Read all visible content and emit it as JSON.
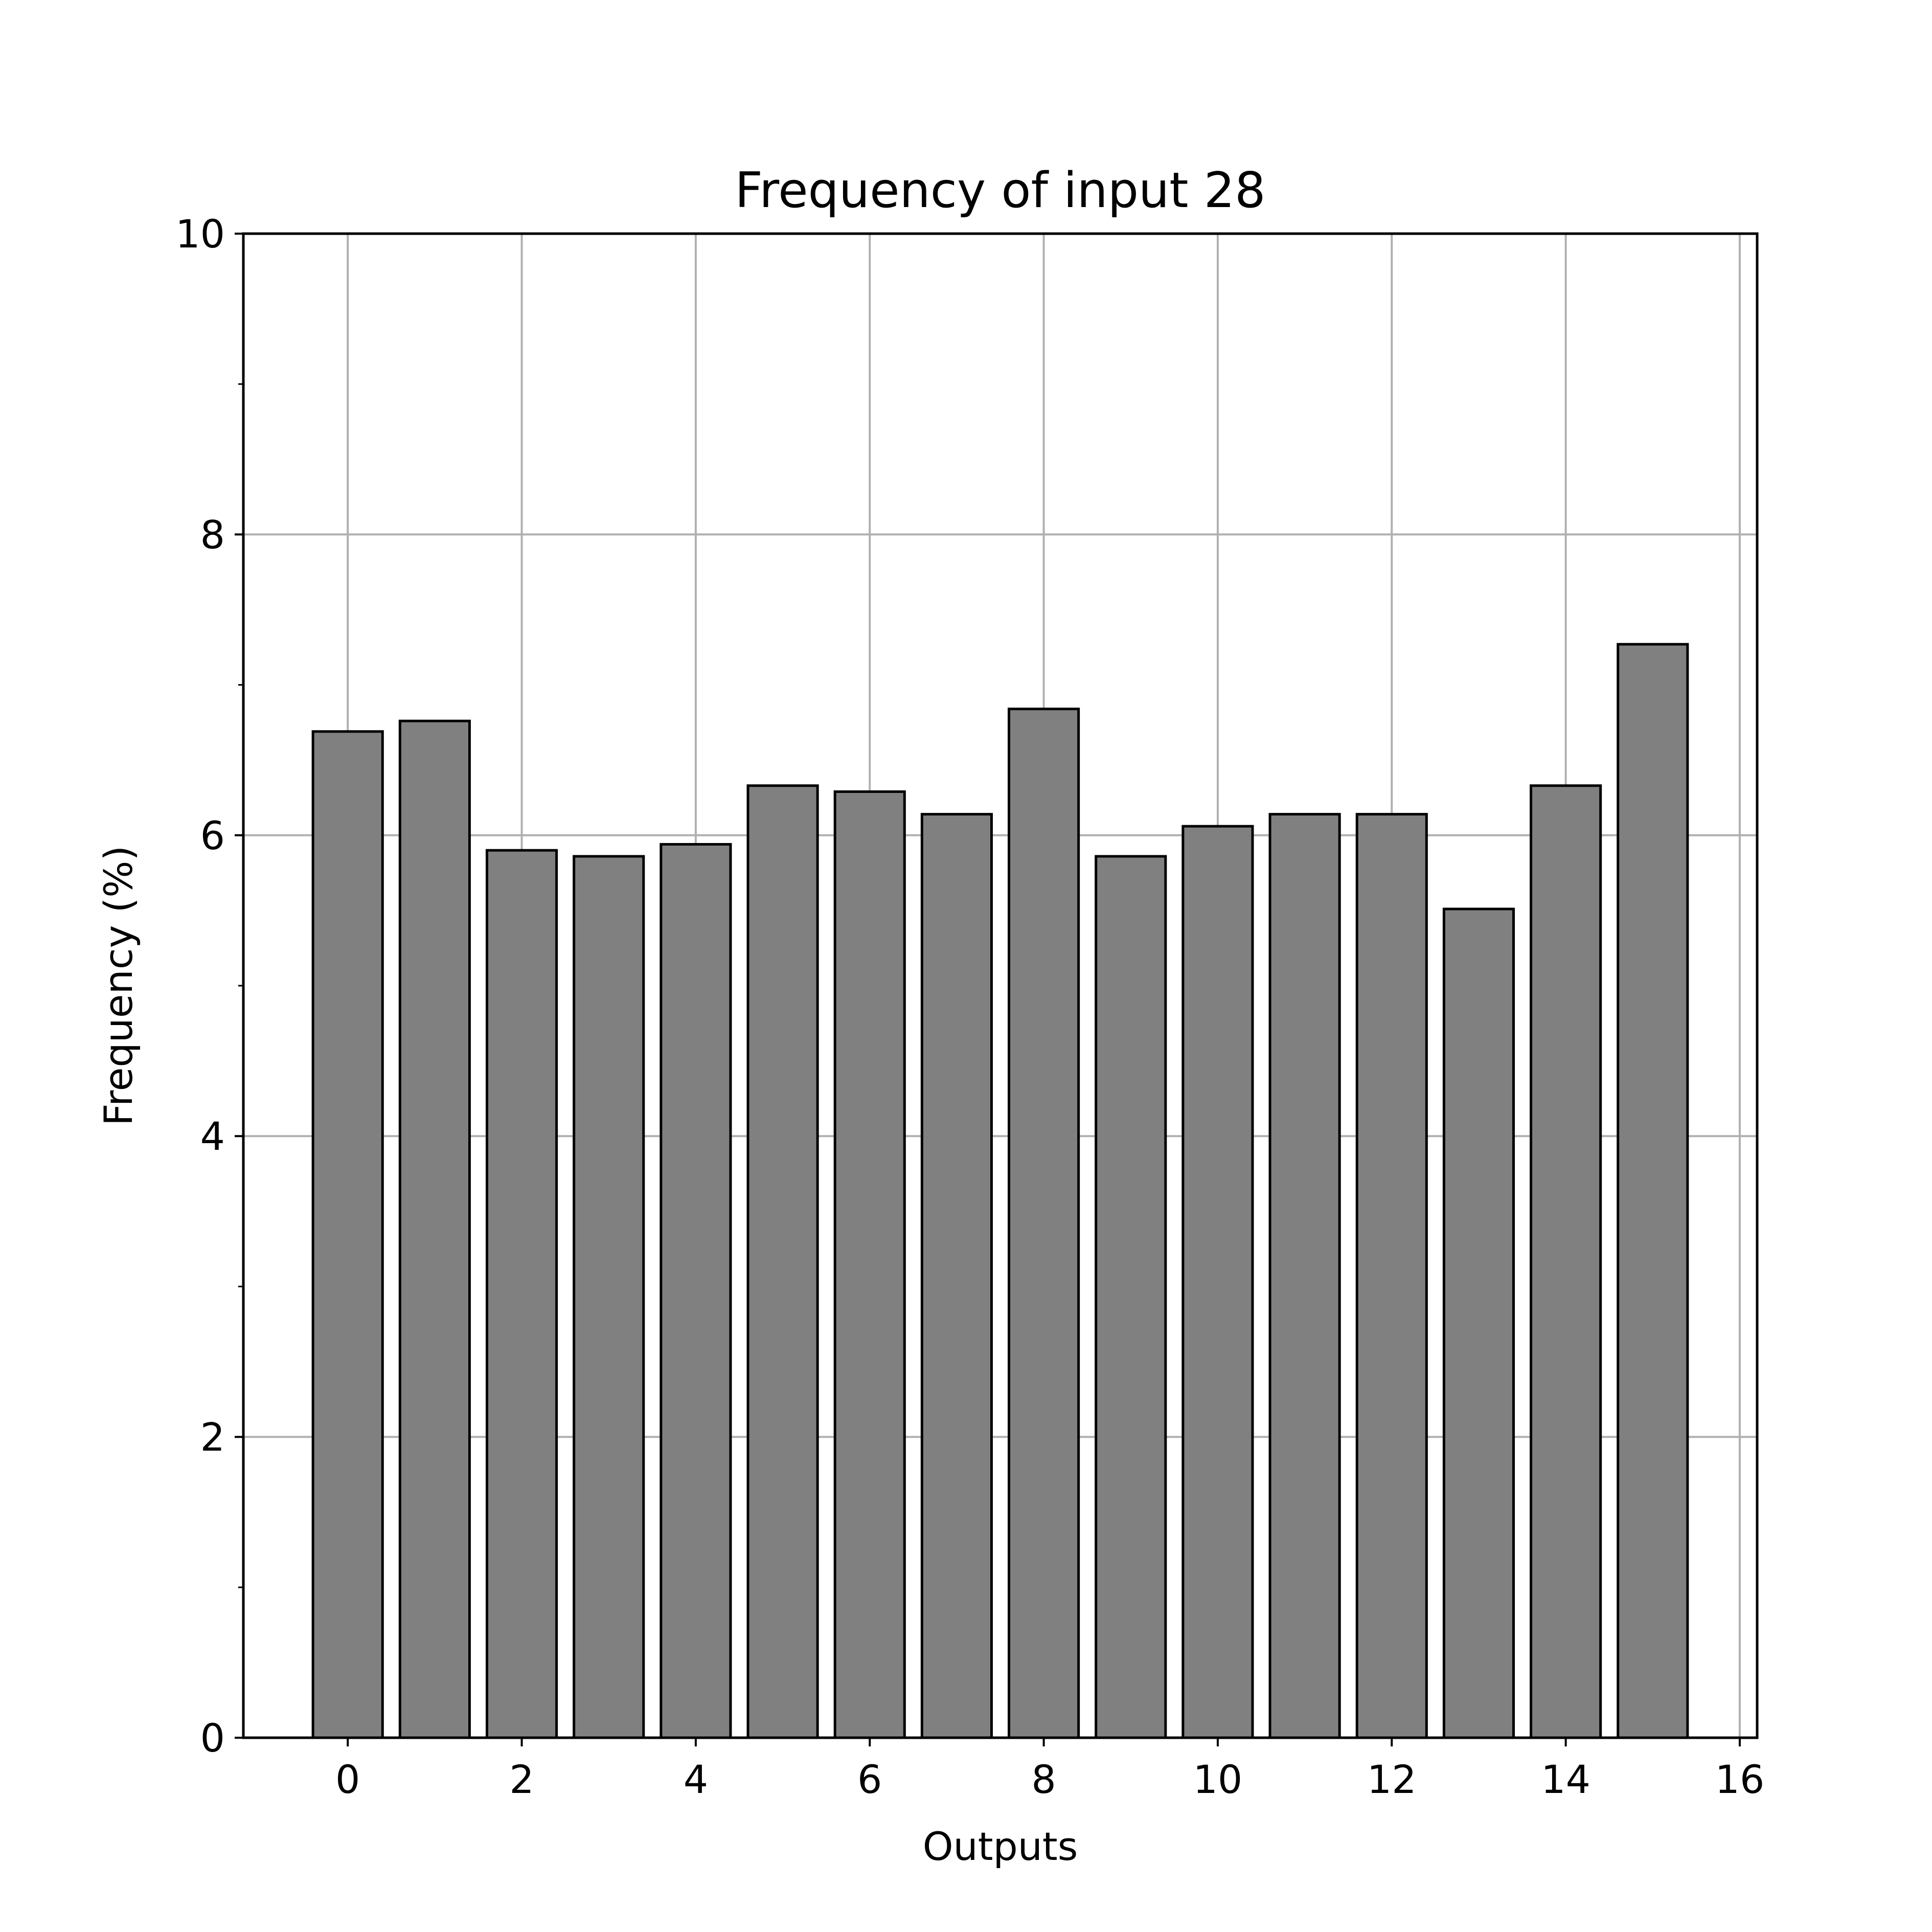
{
  "chart_data": {
    "type": "bar",
    "title": "Frequency of input 28",
    "xlabel": "Outputs",
    "ylabel": "Frequency (%)",
    "x": [
      0,
      1,
      2,
      3,
      4,
      5,
      6,
      7,
      8,
      9,
      10,
      11,
      12,
      13,
      14,
      15
    ],
    "values": [
      6.69,
      6.76,
      5.9,
      5.86,
      5.94,
      6.33,
      6.29,
      6.14,
      6.84,
      5.86,
      6.06,
      6.14,
      6.14,
      5.51,
      6.33,
      7.27
    ],
    "xlim": [
      -1.2,
      16.2
    ],
    "ylim": [
      0,
      10
    ],
    "xticks": [
      "0",
      "2",
      "4",
      "6",
      "8",
      "10",
      "12",
      "14",
      "16"
    ],
    "yticks": [
      "0",
      "2",
      "4",
      "6",
      "8",
      "10"
    ],
    "grid": true,
    "bar_color": "#808080",
    "bar_edge_color": "#000000",
    "grid_color": "#b0b0b0"
  }
}
